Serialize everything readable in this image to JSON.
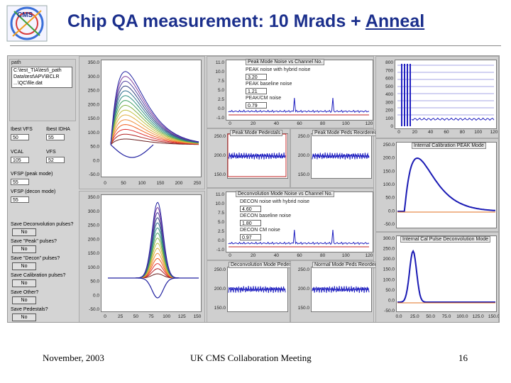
{
  "slide": {
    "title_prefix": "Chip QA measurement: 10 Mrads + ",
    "title_underlined": "Anneal",
    "logo_text": "CMS",
    "footer_date": "November, 2003",
    "footer_meeting": "UK CMS Collaboration Meeting",
    "page_number": "16"
  },
  "colors": {
    "title": "#1b2f8c",
    "trace_blue": "#1a1ab4",
    "trace_orange": "#e07020"
  },
  "controls": {
    "path_label": "path",
    "path_lines": [
      "C:\\test_TIA\\test\\_path",
      "Data\\test\\APV\\BCLR",
      "...\\QC\\file.dat"
    ],
    "fields": [
      {
        "label": "Ibest VFS",
        "value": "50"
      },
      {
        "label": "Ibest IDHA",
        "value": "55"
      },
      {
        "label": "VCAL",
        "value": "105"
      },
      {
        "label": "VFS",
        "value": "52"
      },
      {
        "label": "VFSP (peak mode)",
        "value": "55"
      },
      {
        "label": "VFSP (decon mode)",
        "value": "55"
      }
    ],
    "buttons": [
      {
        "label": "Save Deconvolution pulses?",
        "value": "No"
      },
      {
        "label": "Save \"Peak\" pulses?",
        "value": "No"
      },
      {
        "label": "Save \"Decon\" pulses?",
        "value": "No"
      },
      {
        "label": "Save Calibration pulses?",
        "value": "No"
      },
      {
        "label": "Save Other?",
        "value": "No"
      },
      {
        "label": "Save Pedestals?",
        "value": "No"
      }
    ]
  },
  "peak_pulse_plot": {
    "yticks": [
      "350.0",
      "300.0",
      "250.0",
      "200.0",
      "150.0",
      "100.0",
      "50.0",
      "0.0",
      "-50.0"
    ],
    "xticks": [
      "0",
      "50",
      "100",
      "150",
      "200",
      "250"
    ]
  },
  "decon_pulse_plot": {
    "yticks": [
      "350.0",
      "300.0",
      "250.0",
      "200.0",
      "150.0",
      "100.0",
      "50.0",
      "0.0",
      "-50.0"
    ],
    "xticks": [
      "0",
      "25",
      "50",
      "75",
      "100",
      "125",
      "150"
    ]
  },
  "peak_noise": {
    "title": "Peak Mode Noise vs Channel No.",
    "yticks": [
      "11.0",
      "10.0",
      "7.5",
      "5.0",
      "2.5",
      "0.0",
      "-1.0"
    ],
    "xticks": [
      "0",
      "20",
      "40",
      "60",
      "80",
      "100",
      "120"
    ],
    "legend": [
      {
        "label": "PEAK noise with hybrid noise",
        "value": "3.20"
      },
      {
        "label": "PEAK baseline noise",
        "value": "1.21"
      },
      {
        "label": "PEAK/CM noise",
        "value": "0.79"
      }
    ]
  },
  "decon_noise": {
    "title": "Deconvolution Mode Noise vs Channel No.",
    "yticks": [
      "11.0",
      "10.0",
      "7.5",
      "5.0",
      "2.5",
      "0.0",
      "-1.0"
    ],
    "xticks": [
      "0",
      "20",
      "40",
      "60",
      "80",
      "100",
      "120"
    ],
    "legend": [
      {
        "label": "DECON noise with hybrid noise",
        "value": "4.60"
      },
      {
        "label": "DECON baseline noise",
        "value": "1.80"
      },
      {
        "label": "DECON CM noise",
        "value": "0.97"
      }
    ]
  },
  "small_plots": [
    {
      "title": "Peak Mode Pedestals",
      "yticks": [
        "250.0",
        "200.0",
        "150.0"
      ]
    },
    {
      "title": "Peak Mode Peds Reordered",
      "yticks": [
        "250.0",
        "200.0",
        "150.0"
      ]
    },
    {
      "title": "Deconvolution Mode Pedestals",
      "yticks": [
        "250.0",
        "200.0",
        "150.0"
      ]
    },
    {
      "title": "Normal Mode Peds Reordered",
      "yticks": [
        "250.0",
        "200.0",
        "150.0"
      ]
    }
  ],
  "top_right": {
    "yticks": [
      "800",
      "700",
      "600",
      "500",
      "400",
      "300",
      "200",
      "100",
      "0"
    ],
    "xticks": [
      "0",
      "20",
      "40",
      "60",
      "80",
      "100",
      "120"
    ]
  },
  "cal_peak": {
    "title": "Internal Calibration PEAK Mode",
    "yticks": [
      "250.0",
      "200.0",
      "150.0",
      "100.0",
      "50.0",
      "0.0",
      "-50.0"
    ]
  },
  "cal_decon": {
    "title": "Internal Cal Pulse Deconvolution Mode",
    "yticks": [
      "300.0",
      "250.0",
      "200.0",
      "150.0",
      "100.0",
      "50.0",
      "0.0",
      "-50.0"
    ],
    "xticks": [
      "0.0",
      "25.0",
      "50.0",
      "75.0",
      "100.0",
      "125.0",
      "150.0"
    ]
  }
}
